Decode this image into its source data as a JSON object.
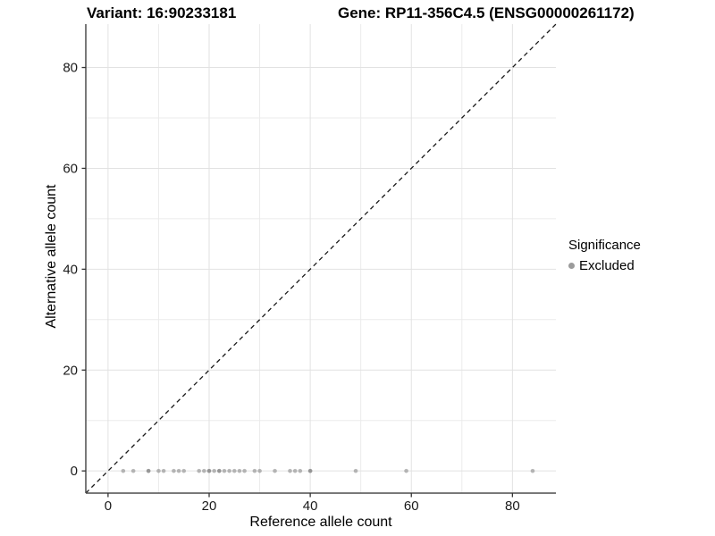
{
  "figure": {
    "title_left": "Variant: 16:90233181",
    "title_right": "Gene: RP11-356C4.5 (ENSG00000261172)"
  },
  "chart_data": {
    "type": "scatter",
    "title_left": "Variant: 16:90233181",
    "title_right": "Gene: RP11-356C4.5 (ENSG00000261172)",
    "xlabel": "Reference allele count",
    "ylabel": "Alternative allele count",
    "xlim": [
      -4.4,
      88.6
    ],
    "ylim": [
      -4.4,
      88.6
    ],
    "x_ticks": [
      0,
      20,
      40,
      60,
      80
    ],
    "y_ticks": [
      0,
      20,
      40,
      60,
      80
    ],
    "minor_grid": [
      10,
      30,
      50,
      70
    ],
    "grid": true,
    "reference_line": {
      "type": "identity",
      "slope": 1,
      "intercept": 0,
      "style": "dashed",
      "color": "#1a1a1a"
    },
    "series": [
      {
        "name": "Excluded",
        "color": "#808080",
        "opacity": 0.55,
        "points": [
          [
            3,
            0
          ],
          [
            5,
            0
          ],
          [
            8,
            0
          ],
          [
            8,
            0
          ],
          [
            10,
            0
          ],
          [
            11,
            0
          ],
          [
            13,
            0
          ],
          [
            14,
            0
          ],
          [
            15,
            0
          ],
          [
            18,
            0
          ],
          [
            19,
            0
          ],
          [
            20,
            0
          ],
          [
            20,
            0
          ],
          [
            21,
            0
          ],
          [
            22,
            0
          ],
          [
            22,
            0
          ],
          [
            23,
            0
          ],
          [
            24,
            0
          ],
          [
            25,
            0
          ],
          [
            26,
            0
          ],
          [
            27,
            0
          ],
          [
            29,
            0
          ],
          [
            30,
            0
          ],
          [
            33,
            0
          ],
          [
            36,
            0
          ],
          [
            37,
            0
          ],
          [
            38,
            0
          ],
          [
            40,
            0
          ],
          [
            40,
            0
          ],
          [
            49,
            0
          ],
          [
            59,
            0
          ],
          [
            84,
            0
          ]
        ]
      }
    ],
    "legend": {
      "title": "Significance",
      "position": "right",
      "entries": [
        {
          "label": "Excluded",
          "color": "#9b9b9b"
        }
      ]
    },
    "colors": {
      "background": "#ffffff",
      "major_gridline": "#e2e2e2",
      "minor_gridline": "#ebebeb",
      "axis_line": "#4d4d4d",
      "tick_mark": "#333333",
      "tick_label": "#1a1a1a",
      "point": "#808080"
    }
  }
}
